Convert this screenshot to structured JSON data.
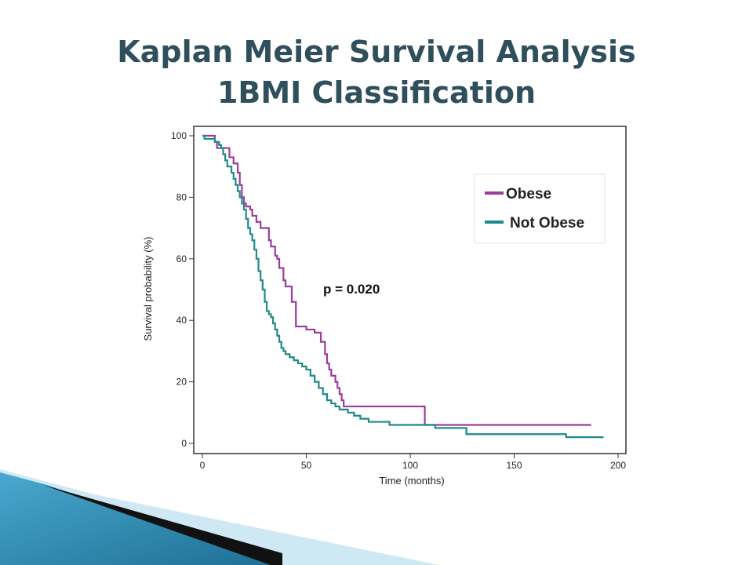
{
  "slide": {
    "title_line_1": "Kaplan Meier Survival Analysis",
    "title_line_2": "1BMI Classification"
  },
  "colors": {
    "title": "#2e4f5b",
    "obese": "#9b3c9b",
    "not_obese": "#1f8a8a",
    "decor_blue": "#2f8fb8",
    "decor_light": "#bfe2f0",
    "decor_dark": "#111111"
  },
  "chart_data": {
    "type": "line",
    "subtype": "kaplan-meier-step",
    "title": "",
    "xlabel": "Time (months)",
    "ylabel": "Survival probability (%)",
    "xlim": [
      0,
      200
    ],
    "ylim": [
      0,
      100
    ],
    "x_ticks": [
      0,
      50,
      100,
      150,
      200
    ],
    "y_ticks": [
      0,
      20,
      40,
      60,
      80,
      100
    ],
    "grid": false,
    "legend_position": "top-right",
    "annotation": "p = 0.020",
    "series": [
      {
        "name": "Obese",
        "color": "#9b3c9b",
        "x": [
          0,
          1,
          6,
          7,
          8,
          12,
          13,
          15,
          16,
          17,
          18,
          19,
          20,
          21,
          22,
          23,
          24,
          26,
          28,
          31,
          32,
          33,
          35,
          36,
          37,
          39,
          40,
          43,
          45,
          50,
          54,
          57,
          59,
          60,
          61,
          62,
          64,
          65,
          66,
          67,
          68,
          70,
          107,
          112,
          187
        ],
        "y": [
          100,
          100,
          98,
          96,
          96,
          96,
          93,
          91,
          91,
          88,
          84,
          80,
          78,
          77,
          77,
          76,
          74,
          72,
          70,
          70,
          66,
          64,
          61,
          60,
          57,
          53,
          51,
          46,
          38,
          37,
          36,
          33,
          29,
          26,
          24,
          22,
          20,
          18,
          16,
          14,
          12,
          12,
          6,
          6,
          6
        ]
      },
      {
        "name": "Not Obese",
        "color": "#1f8a8a",
        "x": [
          0,
          1,
          4,
          6,
          8,
          9,
          10,
          11,
          12,
          14,
          15,
          16,
          17,
          18,
          19,
          20,
          21,
          22,
          23,
          24,
          25,
          26,
          27,
          28,
          29,
          30,
          31,
          32,
          33,
          34,
          35,
          36,
          37,
          38,
          39,
          40,
          42,
          44,
          46,
          48,
          50,
          52,
          54,
          56,
          58,
          60,
          62,
          64,
          66,
          68,
          70,
          73,
          76,
          80,
          90,
          100,
          107,
          112,
          127,
          152,
          175,
          193
        ],
        "y": [
          100,
          99,
          99,
          98,
          97,
          96,
          94,
          92,
          90,
          88,
          86,
          84,
          82,
          80,
          78,
          76,
          73,
          70,
          68,
          66,
          63,
          60,
          56,
          53,
          50,
          46,
          43,
          42,
          41,
          39,
          37,
          35,
          33,
          31,
          30,
          29,
          28,
          27,
          26,
          25,
          24,
          22,
          20,
          18,
          16,
          14,
          13,
          12,
          11,
          11,
          10,
          9,
          8,
          7,
          6,
          6,
          6,
          5,
          3,
          3,
          2,
          2
        ]
      }
    ]
  }
}
